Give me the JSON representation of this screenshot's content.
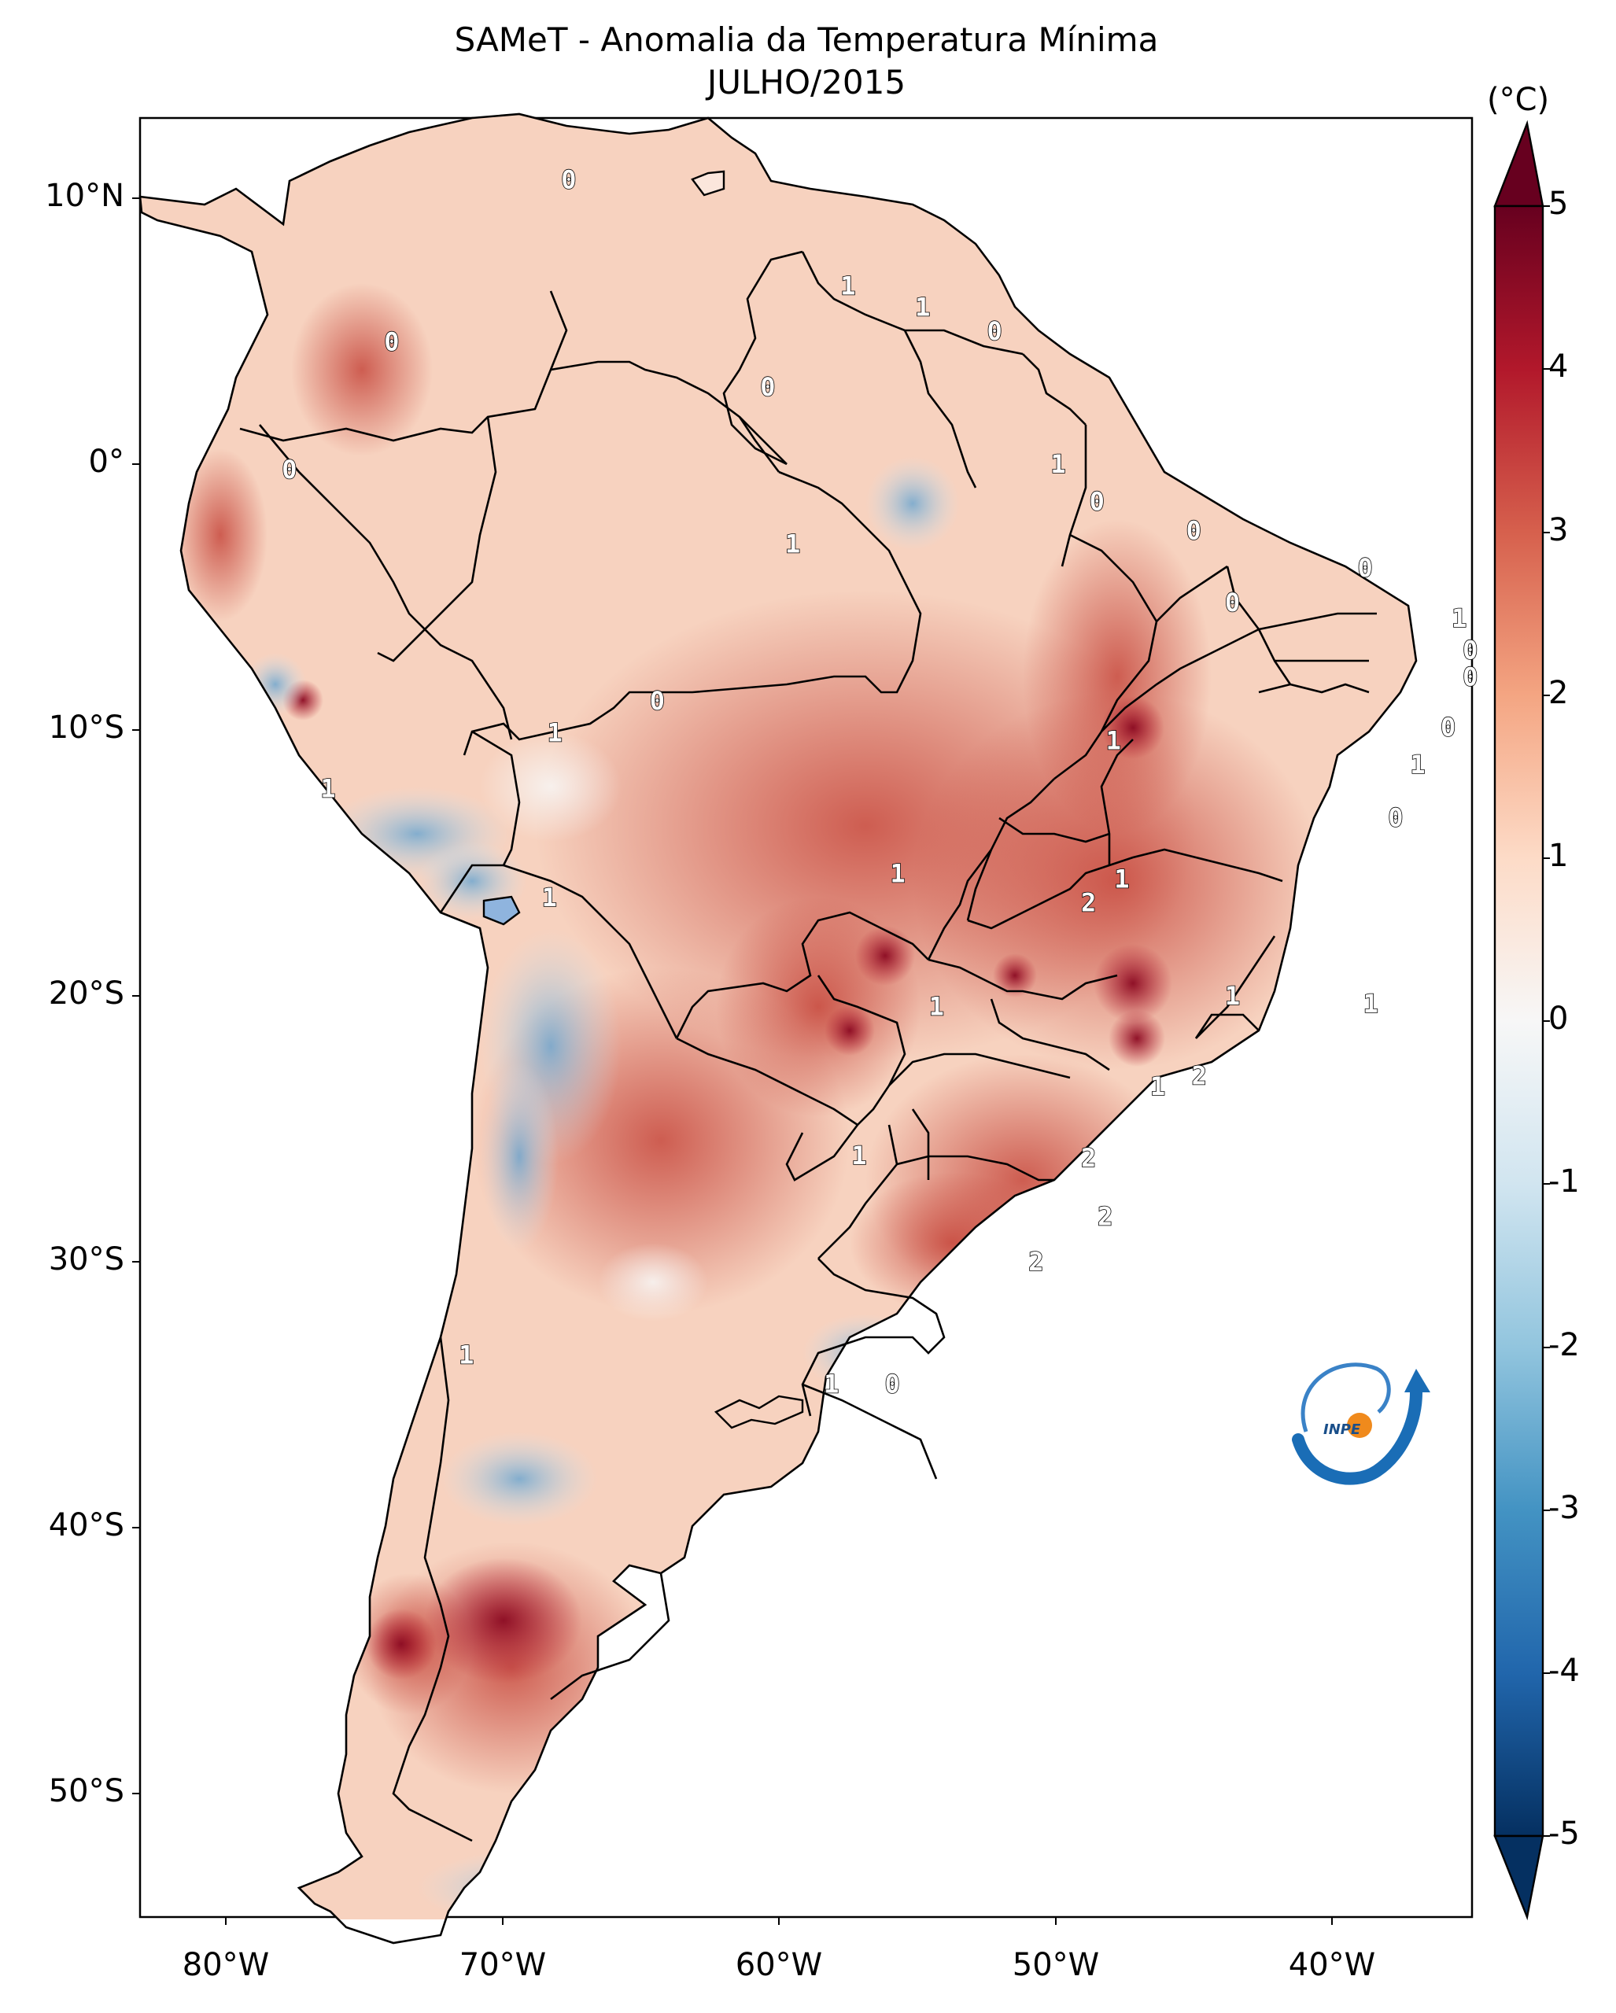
{
  "title": "SAMeT - Anomalia da Temperatura Mínima",
  "subtitle": "JULHO/2015",
  "colorbar": {
    "unit": "(°C)",
    "ticks": [
      "5",
      "4",
      "3",
      "2",
      "1",
      "0",
      "-1",
      "-2",
      "-3",
      "-4",
      "-5"
    ]
  },
  "axes": {
    "lat_labels": [
      "10°N",
      "0°",
      "10°S",
      "20°S",
      "30°S",
      "40°S",
      "50°S"
    ],
    "lon_labels": [
      "80°W",
      "70°W",
      "60°W",
      "50°W",
      "40°W"
    ]
  },
  "contour_labels": [
    {
      "text": "0",
      "lon": -67.6,
      "lat": 10.7
    },
    {
      "text": "1",
      "lon": -57.5,
      "lat": 6.7
    },
    {
      "text": "1",
      "lon": -54.8,
      "lat": 5.9
    },
    {
      "text": "0",
      "lon": -52.2,
      "lat": 5.0
    },
    {
      "text": "0",
      "lon": -74.0,
      "lat": 4.6
    },
    {
      "text": "0",
      "lon": -60.4,
      "lat": 2.9
    },
    {
      "text": "0",
      "lon": -77.7,
      "lat": -0.2
    },
    {
      "text": "1",
      "lon": -49.9,
      "lat": 0.0
    },
    {
      "text": "0",
      "lon": -48.5,
      "lat": -1.4
    },
    {
      "text": "0",
      "lon": -45.0,
      "lat": -2.5
    },
    {
      "text": "1",
      "lon": -59.5,
      "lat": -3.0
    },
    {
      "text": "0",
      "lon": -38.8,
      "lat": -3.9
    },
    {
      "text": "0",
      "lon": -43.6,
      "lat": -5.2
    },
    {
      "text": "1",
      "lon": -35.4,
      "lat": -5.8
    },
    {
      "text": "0",
      "lon": -35.0,
      "lat": -7.0
    },
    {
      "text": "0",
      "lon": -35.0,
      "lat": -8.0
    },
    {
      "text": "0",
      "lon": -64.4,
      "lat": -8.9
    },
    {
      "text": "0",
      "lon": -35.8,
      "lat": -9.9
    },
    {
      "text": "1",
      "lon": -68.1,
      "lat": -10.1
    },
    {
      "text": "1",
      "lon": -47.9,
      "lat": -10.4
    },
    {
      "text": "1",
      "lon": -36.9,
      "lat": -11.3
    },
    {
      "text": "1",
      "lon": -76.3,
      "lat": -12.2
    },
    {
      "text": "0",
      "lon": -37.7,
      "lat": -13.3
    },
    {
      "text": "1",
      "lon": -55.7,
      "lat": -15.4
    },
    {
      "text": "1",
      "lon": -47.6,
      "lat": -15.6
    },
    {
      "text": "2",
      "lon": -48.8,
      "lat": -16.5
    },
    {
      "text": "1",
      "lon": -68.3,
      "lat": -16.3
    },
    {
      "text": "1",
      "lon": -43.6,
      "lat": -20.0
    },
    {
      "text": "1",
      "lon": -54.3,
      "lat": -20.4
    },
    {
      "text": "1",
      "lon": -38.6,
      "lat": -20.3
    },
    {
      "text": "2",
      "lon": -44.8,
      "lat": -23.0
    },
    {
      "text": "1",
      "lon": -46.3,
      "lat": -23.4
    },
    {
      "text": "1",
      "lon": -57.1,
      "lat": -26.0
    },
    {
      "text": "2",
      "lon": -48.8,
      "lat": -26.1
    },
    {
      "text": "2",
      "lon": -48.2,
      "lat": -28.3
    },
    {
      "text": "2",
      "lon": -50.7,
      "lat": -30.0
    },
    {
      "text": "1",
      "lon": -71.3,
      "lat": -33.5
    },
    {
      "text": "1",
      "lon": -58.1,
      "lat": -34.6
    },
    {
      "text": "0",
      "lon": -55.9,
      "lat": -34.6
    }
  ],
  "logo": {
    "text": "INPE"
  }
}
